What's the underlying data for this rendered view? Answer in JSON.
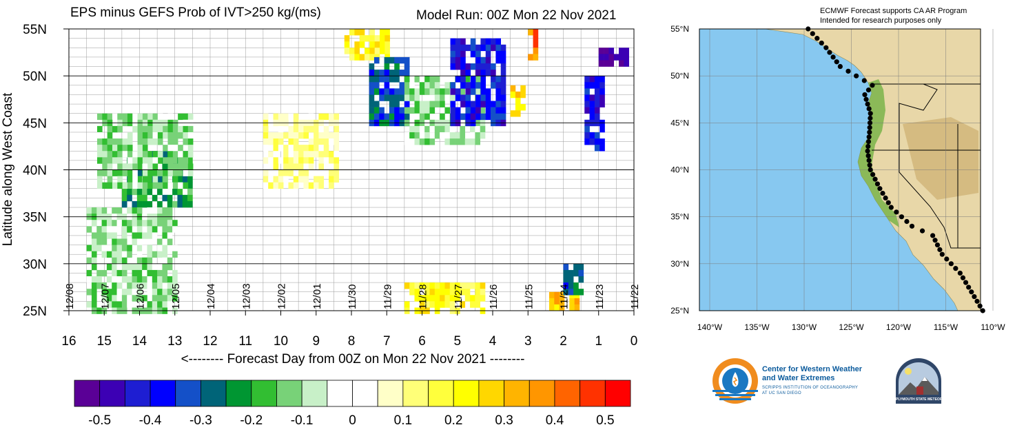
{
  "chart_data": {
    "type": "heatmap",
    "title": "EPS minus GEFS Prob of IVT>250 kg/(ms)",
    "run_label": "Model Run: 00Z Mon 22 Nov 2021",
    "ylabel": "Latitude along West Coast",
    "xlabel": "<-------- Forecast Day from 00Z on Mon 22 Nov 2021 --------",
    "x_reversed": true,
    "xlim": [
      0,
      16
    ],
    "ylim": [
      25,
      55
    ],
    "x_ticks": [
      "16",
      "15",
      "14",
      "13",
      "12",
      "11",
      "10",
      "9",
      "8",
      "7",
      "6",
      "5",
      "4",
      "3",
      "2",
      "1",
      "0"
    ],
    "y_ticks": [
      "25N",
      "30N",
      "35N",
      "40N",
      "45N",
      "50N",
      "55N"
    ],
    "date_labels": [
      {
        "day": 16,
        "label": "12/08"
      },
      {
        "day": 15,
        "label": "12/07"
      },
      {
        "day": 14,
        "label": "12/06"
      },
      {
        "day": 13,
        "label": "12/05"
      },
      {
        "day": 12,
        "label": "12/04"
      },
      {
        "day": 11,
        "label": "12/03"
      },
      {
        "day": 10,
        "label": "12/02"
      },
      {
        "day": 9,
        "label": "12/01"
      },
      {
        "day": 8,
        "label": "11/30"
      },
      {
        "day": 7,
        "label": "11/29"
      },
      {
        "day": 6,
        "label": "11/28"
      },
      {
        "day": 5,
        "label": "11/27"
      },
      {
        "day": 4,
        "label": "11/26"
      },
      {
        "day": 3,
        "label": "11/25"
      },
      {
        "day": 2,
        "label": "11/24"
      },
      {
        "day": 1,
        "label": "11/23"
      },
      {
        "day": 0,
        "label": "11/22"
      }
    ],
    "colorbar": {
      "colors": [
        "#5a0096",
        "#3c00b4",
        "#1e1ed2",
        "#0000ff",
        "#1450c8",
        "#006478",
        "#009632",
        "#32be32",
        "#78d278",
        "#c8f0c8",
        "#ffffff",
        "#ffffff",
        "#ffffc8",
        "#ffff78",
        "#ffff3c",
        "#ffff00",
        "#ffd700",
        "#ffb400",
        "#ff9600",
        "#ff6400",
        "#ff3200",
        "#ff0000"
      ],
      "labels": [
        "-0.5",
        "-0.4",
        "-0.3",
        "-0.2",
        "-0.1",
        "0",
        "0.1",
        "0.2",
        "0.3",
        "0.4",
        "0.5"
      ]
    },
    "regions": [
      {
        "day": [
          14.5,
          12.5
        ],
        "lat": [
          36,
          42
        ],
        "value": -0.2
      },
      {
        "day": [
          15.2,
          12.5
        ],
        "lat": [
          38,
          46
        ],
        "value": -0.1
      },
      {
        "day": [
          15.5,
          13.0
        ],
        "lat": [
          25,
          36
        ],
        "value": -0.1
      },
      {
        "day": [
          10.5,
          8.5
        ],
        "lat": [
          38,
          46
        ],
        "value": 0.1
      },
      {
        "day": [
          8.2,
          7.0
        ],
        "lat": [
          52,
          55
        ],
        "value": 0.2
      },
      {
        "day": [
          7.5,
          6.5
        ],
        "lat": [
          45,
          52
        ],
        "value": -0.3
      },
      {
        "day": [
          6.5,
          4.3
        ],
        "lat": [
          43,
          50
        ],
        "value": -0.1
      },
      {
        "day": [
          5.2,
          3.7
        ],
        "lat": [
          45,
          54
        ],
        "value": -0.4
      },
      {
        "day": [
          3.5,
          3.2
        ],
        "lat": [
          46,
          49
        ],
        "value": 0.3
      },
      {
        "day": [
          3.0,
          2.8
        ],
        "lat": [
          52,
          55
        ],
        "value": 0.4
      },
      {
        "day": [
          1.4,
          0.9
        ],
        "lat": [
          42,
          50
        ],
        "value": -0.4
      },
      {
        "day": [
          1.0,
          0.2
        ],
        "lat": [
          51,
          53
        ],
        "value": -0.5
      },
      {
        "day": [
          6.5,
          4.3
        ],
        "lat": [
          25,
          28
        ],
        "value": 0.2
      },
      {
        "day": [
          2.4,
          1.6
        ],
        "lat": [
          25,
          27
        ],
        "value": 0.3
      },
      {
        "day": [
          2.0,
          1.5
        ],
        "lat": [
          27,
          30
        ],
        "value": -0.3
      }
    ]
  },
  "map": {
    "note_line1": "ECMWF Forecast supports CA AR Program",
    "note_line2": "Intended for research purposes only",
    "lat_labels": [
      "55°N",
      "50°N",
      "45°N",
      "40°N",
      "35°N",
      "30°N",
      "25°N"
    ],
    "lon_labels": [
      "140°W",
      "135°W",
      "130°W",
      "125°W",
      "120°W",
      "115°W",
      "110°W"
    ],
    "ocean_color": "#87c8f0",
    "coast_points_lat": [
      55,
      54.5,
      54,
      53.5,
      53,
      52.5,
      52,
      51.5,
      51,
      50.5,
      50,
      49.5,
      49,
      48.5,
      48,
      47.5,
      47,
      46.5,
      46,
      45.5,
      45,
      44.5,
      44,
      43.5,
      43,
      42.5,
      42,
      41.5,
      41,
      40.5,
      40,
      39.5,
      39,
      38.5,
      38,
      37.5,
      37,
      36.5,
      36,
      35.5,
      35,
      34.5,
      34,
      33.5,
      33,
      32.5,
      32,
      31.5,
      31,
      30.5,
      30,
      29.5,
      29,
      28.5,
      28,
      27.5,
      27,
      26.5,
      26,
      25.5,
      25
    ]
  },
  "logos": {
    "cw3e_line1": "Center for Western Weather",
    "cw3e_line2": "and Water Extremes",
    "cw3e_sub1": "SCRIPPS INSTITUTION OF OCEANOGRAPHY",
    "cw3e_sub2": "AT UC SAN DIEGO",
    "psu_text": "PLYMOUTH STATE METEOROLOGY"
  }
}
